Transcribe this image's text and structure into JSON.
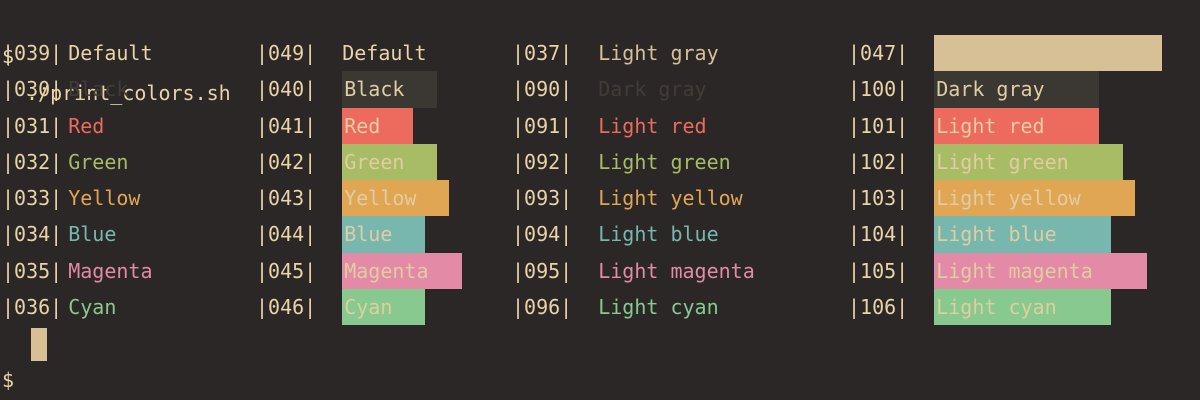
{
  "terminal": {
    "command_line": {
      "prompt": "$",
      "command": "./print_colors.sh"
    },
    "prompt_line": {
      "prompt": "$"
    }
  },
  "palette": {
    "background": "#2a2726",
    "foreground": "#e9d3a7",
    "foreground_on_block": "#e0cda1",
    "black": "#423c38",
    "dark_gray_block": "#3b3733",
    "red": "#ec6a5e",
    "green": "#a8bc66",
    "yellow": "#e0a654",
    "blue": "#77b7ad",
    "magenta": "#e28aa6",
    "cyan": "#87c98f",
    "light_gray": "#d7c096"
  },
  "rows": [
    {
      "cells": [
        {
          "code": "|039|",
          "label": "Default",
          "fg": "foreground"
        },
        {
          "code": "|049|",
          "label": "Default",
          "fg": "foreground"
        },
        {
          "code": "|037|",
          "label": "Light gray",
          "fg": "light_gray"
        },
        {
          "code": "|047|",
          "label": "",
          "fg": "light_gray",
          "bg": "light_gray"
        }
      ]
    },
    {
      "cells": [
        {
          "code": "|030|",
          "label": "Black",
          "fg": "black"
        },
        {
          "code": "|040|",
          "label": "Black",
          "fg": "foreground_on_block",
          "bg": "dark_gray_block"
        },
        {
          "code": "|090|",
          "label": "Dark gray",
          "fg": "black"
        },
        {
          "code": "|100|",
          "label": "Dark gray",
          "fg": "foreground_on_block",
          "bg": "dark_gray_block"
        }
      ]
    },
    {
      "cells": [
        {
          "code": "|031|",
          "label": "Red",
          "fg": "red"
        },
        {
          "code": "|041|",
          "label": "Red",
          "fg": "foreground_on_block",
          "bg": "red"
        },
        {
          "code": "|091|",
          "label": "Light red",
          "fg": "red"
        },
        {
          "code": "|101|",
          "label": "Light red",
          "fg": "foreground_on_block",
          "bg": "red"
        }
      ]
    },
    {
      "cells": [
        {
          "code": "|032|",
          "label": "Green",
          "fg": "green"
        },
        {
          "code": "|042|",
          "label": "Green",
          "fg": "foreground_on_block",
          "bg": "green"
        },
        {
          "code": "|092|",
          "label": "Light green",
          "fg": "green"
        },
        {
          "code": "|102|",
          "label": "Light green",
          "fg": "foreground_on_block",
          "bg": "green"
        }
      ]
    },
    {
      "cells": [
        {
          "code": "|033|",
          "label": "Yellow",
          "fg": "yellow"
        },
        {
          "code": "|043|",
          "label": "Yellow",
          "fg": "foreground_on_block",
          "bg": "yellow"
        },
        {
          "code": "|093|",
          "label": "Light yellow",
          "fg": "yellow"
        },
        {
          "code": "|103|",
          "label": "Light yellow",
          "fg": "foreground_on_block",
          "bg": "yellow"
        }
      ]
    },
    {
      "cells": [
        {
          "code": "|034|",
          "label": "Blue",
          "fg": "blue"
        },
        {
          "code": "|044|",
          "label": "Blue",
          "fg": "foreground_on_block",
          "bg": "blue"
        },
        {
          "code": "|094|",
          "label": "Light blue",
          "fg": "blue"
        },
        {
          "code": "|104|",
          "label": "Light blue",
          "fg": "foreground_on_block",
          "bg": "blue"
        }
      ]
    },
    {
      "cells": [
        {
          "code": "|035|",
          "label": "Magenta",
          "fg": "magenta"
        },
        {
          "code": "|045|",
          "label": "Magenta",
          "fg": "foreground_on_block",
          "bg": "magenta"
        },
        {
          "code": "|095|",
          "label": "Light magenta",
          "fg": "magenta"
        },
        {
          "code": "|105|",
          "label": "Light magenta",
          "fg": "foreground_on_block",
          "bg": "magenta"
        }
      ]
    },
    {
      "cells": [
        {
          "code": "|036|",
          "label": "Cyan",
          "fg": "cyan"
        },
        {
          "code": "|046|",
          "label": "Cyan",
          "fg": "foreground_on_block",
          "bg": "cyan"
        },
        {
          "code": "|096|",
          "label": "Light cyan",
          "fg": "cyan"
        },
        {
          "code": "|106|",
          "label": "Light cyan",
          "fg": "foreground_on_block",
          "bg": "cyan"
        }
      ]
    }
  ]
}
